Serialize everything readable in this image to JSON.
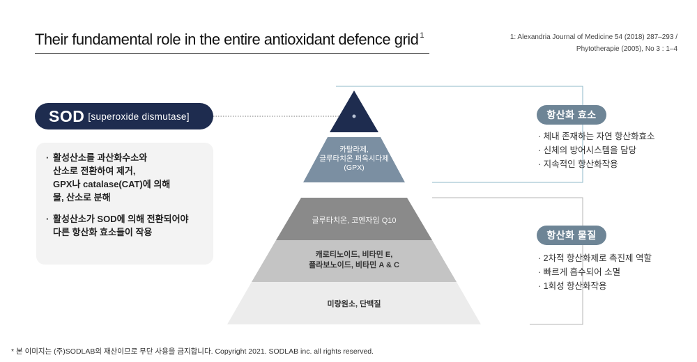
{
  "title": {
    "text": "Their fundamental role in the entire antioxidant defence grid",
    "sup": "1"
  },
  "references": [
    "1: Alexandria Journal of Medicine 54 (2018) 287–293 /",
    "Phytotherapie (2005), No 3 : 1–4"
  ],
  "sod": {
    "abbr": "SOD",
    "full": "[superoxide dismutase]"
  },
  "sod_description": [
    [
      "· ",
      "활성산소를 과산화수소와",
      "산소로 전환하여 제거,",
      "GPX나 catalase(CAT)에 의해",
      "물, 산소로 분해"
    ],
    [
      "· ",
      "활성산소가 SOD에 의해 전환되어야",
      "다른 항산화 효소들이 작용"
    ]
  ],
  "pyramid": {
    "tier2": [
      "카탈라제,",
      "글루타치온 퍼옥시다제",
      "(GPX)"
    ],
    "tier3": "글루타치온, 코엔자임 Q10",
    "tier4": [
      "캐로티노이드, 비타민 E,",
      "플라보노이드, 비타민 A & C"
    ],
    "tier5": "미량원소, 단백질",
    "colors": {
      "tier1": "#1e2c4f",
      "tier2": "#7b8fa2",
      "tier3": "#8a8a8a",
      "tier4": "#c4c4c4",
      "tier5": "#ececec"
    }
  },
  "groups": {
    "enzymes": {
      "label": "항산화 효소",
      "items": [
        "· 체내 존재하는 자연 항산화효소",
        "· 신체의 방어시스템을 담당",
        "· 지속적인 항산화작용"
      ]
    },
    "substances": {
      "label": "항산화 물질",
      "items": [
        "· 2차적 항산화제로 촉진제 역할",
        "· 빠르게 흡수되어 소멸",
        "· 1회성 항산화작용"
      ]
    }
  },
  "footer": "* 본 이미지는 (주)SODLAB의 재산이므로 무단 사용을 금지합니다. Copyright 2021. SODLAB inc. all rights reserved."
}
